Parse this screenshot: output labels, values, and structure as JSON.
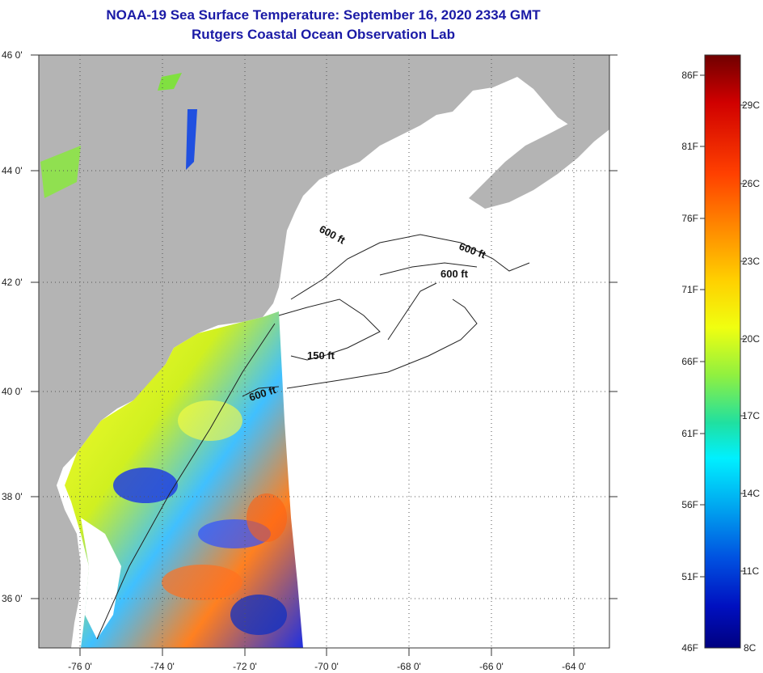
{
  "title": "NOAA-19 Sea Surface Temperature:  September 16, 2020 2334 GMT",
  "subtitle": "Rutgers Coastal Ocean Observation Lab",
  "colors": {
    "land": "#b4b4b4",
    "ocean_nodata": "#ffffff",
    "title": "#1a1aa6",
    "gridline": "#555555"
  },
  "axes": {
    "lat_labels": [
      "46 0'",
      "44 0'",
      "42 0'",
      "40 0'",
      "38 0'",
      "36 0'"
    ],
    "lon_labels": [
      "-76 0'",
      "-74 0'",
      "-72 0'",
      "-70 0'",
      "-68 0'",
      "-66 0'",
      "-64 0'"
    ]
  },
  "contours": [
    {
      "label": "600 ft"
    },
    {
      "label": "600 ft"
    },
    {
      "label": "600 ft"
    },
    {
      "label": "150 ft"
    },
    {
      "label": "600 ft"
    }
  ],
  "colorbar": {
    "fahrenheit_labels": [
      "86F",
      "81F",
      "76F",
      "71F",
      "66F",
      "61F",
      "56F",
      "51F",
      "46F"
    ],
    "celsius_labels": [
      "29C",
      "26C",
      "23C",
      "20C",
      "17C",
      "14C",
      "11C",
      "8C"
    ],
    "gradient_stops": [
      "#800000",
      "#d40000",
      "#ff3300",
      "#ff8000",
      "#ffc000",
      "#ffff00",
      "#b0f030",
      "#40e080",
      "#00ffff",
      "#00b0f0",
      "#0060e0",
      "#0020d0",
      "#000090"
    ]
  }
}
